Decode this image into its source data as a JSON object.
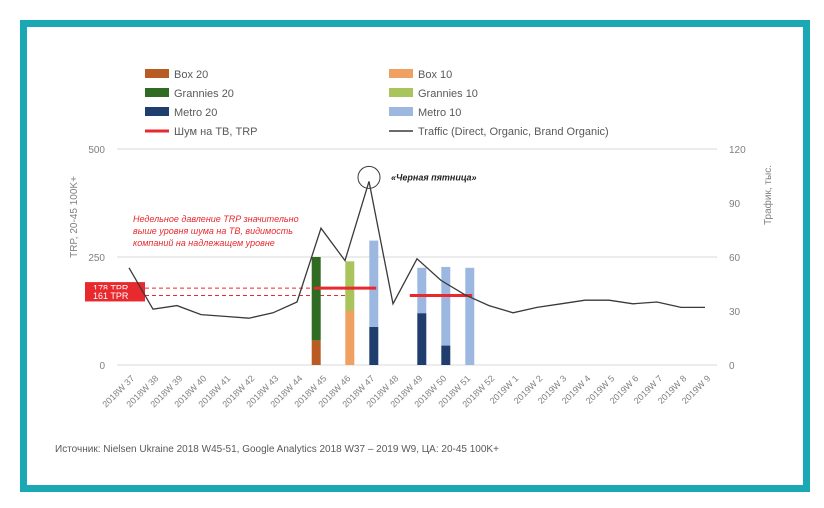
{
  "chart_data": {
    "type": "bar",
    "categories": [
      "2018W 37",
      "2018W 38",
      "2018W 39",
      "2018W 40",
      "2018W 41",
      "2018W 42",
      "2018W 43",
      "2018W 44",
      "2018W 45",
      "2018W 46",
      "2018W 47",
      "2018W 48",
      "2018W 49",
      "2018W 50",
      "2018W 51",
      "2018W 52",
      "2019W 1",
      "2019W 2",
      "2019W 3",
      "2019W 4",
      "2019W 5",
      "2019W 6",
      "2019W 7",
      "2019W 8",
      "2019W 9"
    ],
    "series": [
      {
        "key": "box20",
        "name": "Box 20",
        "color": "#b85c23",
        "offset": -0.2,
        "values": [
          0,
          0,
          0,
          0,
          0,
          0,
          0,
          0,
          57,
          0,
          0,
          0,
          0,
          0,
          0,
          0,
          0,
          0,
          0,
          0,
          0,
          0,
          0,
          0,
          0
        ]
      },
      {
        "key": "grannies20",
        "name": "Grannies 20",
        "color": "#2f6b22",
        "offset": -0.2,
        "values": [
          0,
          0,
          0,
          0,
          0,
          0,
          0,
          0,
          193,
          0,
          0,
          0,
          0,
          0,
          0,
          0,
          0,
          0,
          0,
          0,
          0,
          0,
          0,
          0,
          0
        ]
      },
      {
        "key": "box10",
        "name": "Box 10",
        "color": "#f0a060",
        "offset": 0.2,
        "values": [
          0,
          0,
          0,
          0,
          0,
          0,
          0,
          0,
          0,
          125,
          0,
          0,
          0,
          0,
          0,
          0,
          0,
          0,
          0,
          0,
          0,
          0,
          0,
          0,
          0
        ]
      },
      {
        "key": "grannies10",
        "name": "Grannies 10",
        "color": "#a9c45c",
        "offset": 0.2,
        "values": [
          0,
          0,
          0,
          0,
          0,
          0,
          0,
          0,
          0,
          115,
          0,
          0,
          0,
          0,
          0,
          0,
          0,
          0,
          0,
          0,
          0,
          0,
          0,
          0,
          0
        ]
      },
      {
        "key": "metro20",
        "name": "Metro 20",
        "color": "#1f3e6e",
        "offset": 0.2,
        "values": [
          0,
          0,
          0,
          0,
          0,
          0,
          0,
          0,
          0,
          0,
          88,
          0,
          120,
          45,
          0,
          0,
          0,
          0,
          0,
          0,
          0,
          0,
          0,
          0,
          0
        ]
      },
      {
        "key": "metro10",
        "name": "Metro 10",
        "color": "#9db8e0",
        "offset": 0.2,
        "values": [
          0,
          0,
          0,
          0,
          0,
          0,
          0,
          0,
          0,
          0,
          200,
          0,
          105,
          182,
          225,
          0,
          0,
          0,
          0,
          0,
          0,
          0,
          0,
          0,
          0
        ]
      }
    ],
    "noise_series": {
      "name": "Шум на ТВ, TRP",
      "color": "#e8292e",
      "segments": [
        {
          "from": 8,
          "to": 10,
          "value": 178
        },
        {
          "from": 12,
          "to": 14,
          "value": 161
        }
      ]
    },
    "line_series": {
      "name": "Traffic (Direct, Organic, Brand Organic)",
      "color": "#3a3a3a",
      "values": [
        54,
        31,
        33,
        28,
        27,
        26,
        29,
        35,
        76,
        58,
        102,
        34,
        59,
        47,
        39,
        33,
        29,
        32,
        34,
        36,
        36,
        34,
        35,
        32,
        32
      ]
    },
    "noise_levels": [
      {
        "label": "178 TPR",
        "value": 178,
        "color": "#e8292e"
      },
      {
        "label": "161 TPR",
        "value": 161,
        "color": "#e8292e"
      }
    ],
    "y_left": {
      "label": "TRP, 20-45 100K+",
      "min": 0,
      "max": 500,
      "ticks": [
        0,
        250,
        500
      ]
    },
    "y_right": {
      "label": "Трафик, тыс.",
      "min": 0,
      "max": 120,
      "ticks": [
        0,
        30,
        60,
        90,
        120
      ]
    },
    "legend_placement": "top",
    "annotations": [
      {
        "id": "black-friday",
        "text": "«Черная пятница»",
        "category": "2018W 47"
      }
    ],
    "note_lines": [
      "Недельное давление TRP значительно",
      "выше уровня шума на ТВ, видимость",
      "компаний на надлежащем уровне"
    ],
    "source": "Источник: Nielsen Ukraine 2018 W45-51, Google Analytics 2018 W37 – 2019 W9, ЦА: 20-45 100K+"
  },
  "legend": {
    "items": [
      {
        "key": "box20",
        "label": "Box 20",
        "type": "swatch",
        "color": "#b85c23"
      },
      {
        "key": "box10",
        "label": "Box 10",
        "type": "swatch",
        "color": "#f0a060"
      },
      {
        "key": "grannies20",
        "label": "Grannies 20",
        "type": "swatch",
        "color": "#2f6b22"
      },
      {
        "key": "grannies10",
        "label": "Grannies 10",
        "type": "swatch",
        "color": "#a9c45c"
      },
      {
        "key": "metro20",
        "label": "Metro 20",
        "type": "swatch",
        "color": "#1f3e6e"
      },
      {
        "key": "metro10",
        "label": "Metro 10",
        "type": "swatch",
        "color": "#9db8e0"
      },
      {
        "key": "noise",
        "label": "Шум на ТВ, TRP",
        "type": "thick-line",
        "color": "#e8292e"
      },
      {
        "key": "traffic",
        "label": "Traffic (Direct, Organic, Brand Organic)",
        "type": "line",
        "color": "#3a3a3a"
      }
    ]
  },
  "colors": {
    "frame": "#1aa9b4",
    "grid": "#d9d9d9",
    "axis_text": "#7f7f7f"
  }
}
